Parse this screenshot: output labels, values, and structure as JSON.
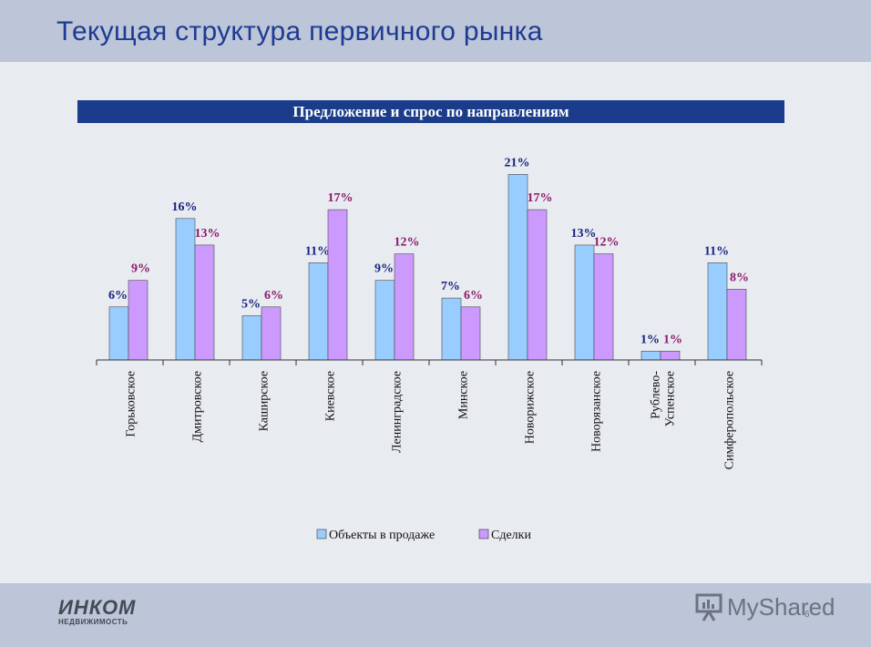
{
  "slide": {
    "title": "Текущая структура первичного рынка",
    "page_number": "6",
    "logo_main": "ИНКОМ",
    "logo_sub": "НЕДВИЖИМОСТЬ",
    "watermark": "MyShared"
  },
  "colors": {
    "series1": "#99ccff",
    "series2": "#cc99ff",
    "label1": "#1a237e",
    "label2": "#8b1a6b",
    "header": "#1a3c8a"
  },
  "chart_data": {
    "type": "bar",
    "title": "Предложение и спрос по направлениям",
    "categories": [
      [
        "Горьковское"
      ],
      [
        "Дмитровское"
      ],
      [
        "Каширское"
      ],
      [
        "Киевское"
      ],
      [
        "Ленинградское"
      ],
      [
        "Минское"
      ],
      [
        "Новорижское"
      ],
      [
        "Новорязанское"
      ],
      [
        "Рублево-",
        "Успенское"
      ],
      [
        "Симферопольское"
      ]
    ],
    "series": [
      {
        "name": "Объекты в продаже",
        "values": [
          6,
          16,
          5,
          11,
          9,
          7,
          21,
          13,
          1,
          11
        ],
        "labels": [
          "6%",
          "16%",
          "5%",
          "11%",
          "9%",
          "7%",
          "21%",
          "13%",
          "1%",
          "11%"
        ]
      },
      {
        "name": "Сделки",
        "values": [
          9,
          13,
          6,
          17,
          12,
          6,
          17,
          12,
          1,
          8
        ],
        "labels": [
          "9%",
          "13%",
          "6%",
          "17%",
          "12%",
          "6%",
          "17%",
          "12%",
          "1%",
          "8%"
        ]
      }
    ],
    "unit": "%",
    "ylim": [
      0,
      21
    ],
    "grid": false,
    "legend": "bottom"
  }
}
